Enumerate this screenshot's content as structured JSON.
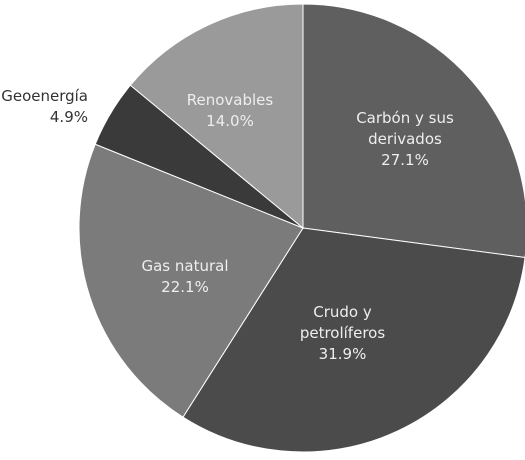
{
  "chart_data": {
    "type": "pie",
    "categories": [
      "Carbón y sus derivados",
      "Crudo y petrolíferos",
      "Gas natural",
      "Geoenergía",
      "Renovables"
    ],
    "values": [
      27.1,
      31.9,
      22.1,
      4.9,
      14.0
    ],
    "value_labels": [
      "27.1%",
      "31.9%",
      "22.1%",
      "4.9%",
      "14.0%"
    ],
    "colors": [
      "#5f5f5f",
      "#4b4b4b",
      "#7b7b7b",
      "#3a3a3a",
      "#9a9a9a"
    ]
  }
}
